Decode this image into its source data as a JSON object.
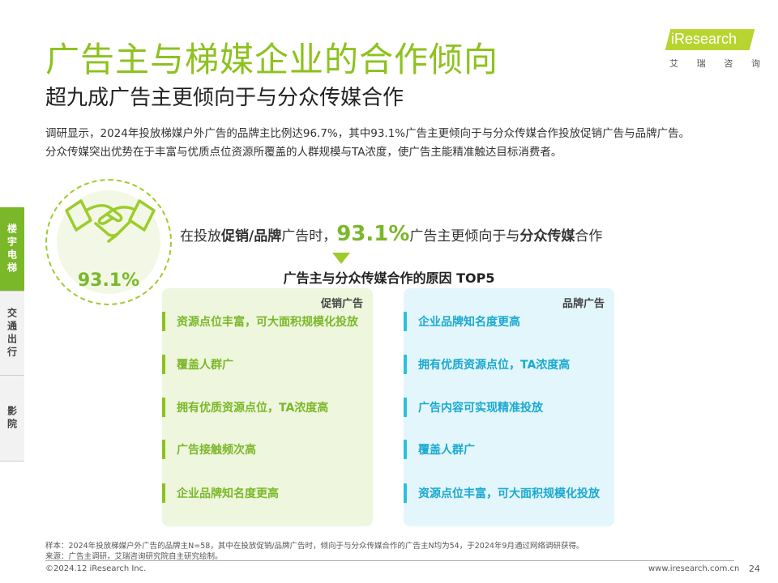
{
  "page": {
    "title": "广告主与梯媒企业的合作倾向",
    "subtitle": "超九成广告主更倾向于与分众传媒合作",
    "intro": [
      "调研显示，2024年投放梯媒户外广告的品牌主比例达96.7%，其中93.1%广告主更倾向于与分众传媒合作投放促销广告与品牌广告。",
      "分众传媒突出优势在于丰富与优质点位资源所覆盖的人群规模与TA浓度，使广告主能精准触达目标消费者。"
    ]
  },
  "logo": {
    "text": "iResearch",
    "cn": [
      "艾",
      "瑞",
      "咨",
      "询"
    ],
    "color": "#b8d430"
  },
  "side_tabs": [
    {
      "label": "楼宇电梯",
      "active": true
    },
    {
      "label": "交通出行",
      "active": false
    },
    {
      "label": "影院",
      "active": false
    }
  ],
  "highlight": {
    "percent": "93.1%",
    "icon": "handshake-icon",
    "stat_prefix": "在投放",
    "stat_bold1": "促销/品牌",
    "stat_mid": "广告时，",
    "stat_big": "93.1%",
    "stat_mid2": "广告主更倾向于与",
    "stat_bold2": "分众传媒",
    "stat_suffix": "合作"
  },
  "chart": {
    "title": "广告主与分众传媒合作的原因 TOP5",
    "promo": {
      "label": "促销广告",
      "color": "#8dc21f",
      "items": [
        "资源点位丰富，可大面积规模化投放",
        "覆盖人群广",
        "拥有优质资源点位，TA浓度高",
        "广告接触频次高",
        "企业品牌知名度更高"
      ]
    },
    "brand": {
      "label": "品牌广告",
      "color": "#2ec0e0",
      "items": [
        "企业品牌知名度更高",
        "拥有优质资源点位，TA浓度高",
        "广告内容可实现精准投放",
        "覆盖人群广",
        "资源点位丰富，可大面积规模化投放"
      ]
    }
  },
  "notes": {
    "sample": "样本：2024年投放梯媒户外广告的品牌主N=58，其中在投放促销/品牌广告时，倾向于与分众传媒合作的广告主N均为54，于2024年9月通过网络调研获得。",
    "source": "来源：广告主调研，艾瑞咨询研究院自主研究绘制。"
  },
  "footer": {
    "copyright": "©2024.12 iResearch Inc.",
    "url": "www.iresearch.com.cn",
    "page": "24"
  }
}
